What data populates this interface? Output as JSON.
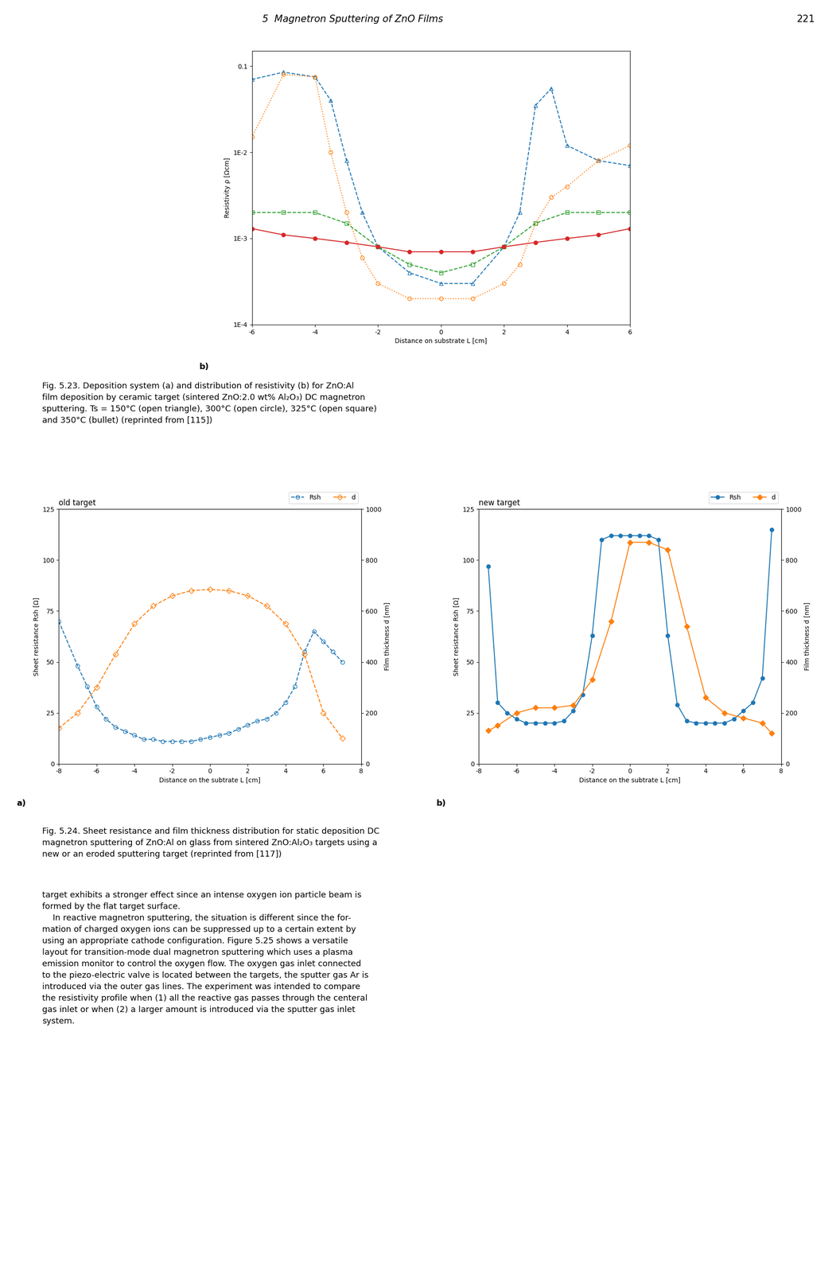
{
  "annotations": [
    "5  Magnetron Sputtering of ZnO Films",
    "221",
    "Fig. 5.23. Deposition system (a) and distribution of resistivity (b) for ZnO:Al\nfilm deposition by ceramic target (sintered ZnO:2.0 wt% Al₂O₃) DC magnetron\nsputtering. Ts = 150°C (open triangle), 300°C (open circle), 325°C (open square)\nand 350°C (bullet) (reprinted from [115])",
    "Fig. 5.24. Sheet resistance and film thickness distribution for static deposition DC\nmagnetron sputtering of ZnO:Al on glass from sintered ZnO:Al₂O₃ targets using a\nnew or an eroded sputtering target (reprinted from [117])",
    "target exhibits a stronger effect since an intense oxygen ion particle beam is\nformed by the flat target surface.\n    In reactive magnetron sputtering, the situation is different since the for-\nmation of charged oxygen ions can be suppressed up to a certain extent by\nusing an appropriate cathode configuration. Figure 5.25 shows a versatile\nlayout for transition-mode dual magnetron sputtering which uses a plasma\nemission monitor to control the oxygen flow. The oxygen gas inlet connected\nto the piezo-electric valve is located between the targets, the sputter gas Ar is\nintroduced via the outer gas lines. The experiment was intended to compare\nthe resistivity profile when (1) all the reactive gas passes through the centeral\ngas inlet or when (2) a larger amount is introduced via the sputter gas inlet\nsystem."
  ],
  "chart_data": [
    {
      "type": "line",
      "log": "y",
      "x_label": "Distance on substrate L [cm]",
      "y_label": "Resistivity ρ [Ωcm]",
      "xlim": [
        -6,
        6
      ],
      "xticks": [
        -6,
        -4,
        -2,
        0,
        2,
        4,
        6
      ],
      "ylim": [
        0.0001,
        0.15
      ],
      "yticks": [
        {
          "value": 0.0001,
          "label": "1E-4"
        },
        {
          "value": 0.001,
          "label": "1E-3"
        },
        {
          "value": 0.01,
          "label": "1E-2"
        },
        0.1
      ],
      "annotations": [
        "b)"
      ],
      "series": [
        {
          "marker": "open triangle",
          "line_style": "dashed",
          "x": [
            -6,
            -5,
            -4,
            -3.5,
            -3,
            -2.5,
            -2,
            -1,
            0,
            1,
            2,
            2.5,
            3,
            3.5,
            4,
            5,
            6
          ],
          "values": [
            0.07,
            0.085,
            0.075,
            0.04,
            0.008,
            0.002,
            0.0008,
            0.0004,
            0.0003,
            0.0003,
            0.0008,
            0.002,
            0.035,
            0.055,
            0.012,
            0.008,
            0.007
          ]
        },
        {
          "marker": "open circle",
          "line_style": "dotted",
          "x": [
            -6,
            -5,
            -4,
            -3.5,
            -3,
            -2.5,
            -2,
            -1,
            0,
            1,
            2,
            2.5,
            3,
            3.5,
            4,
            5,
            6
          ],
          "values": [
            0.015,
            0.08,
            0.075,
            0.01,
            0.002,
            0.0006,
            0.0003,
            0.0002,
            0.0002,
            0.0002,
            0.0003,
            0.0005,
            0.0015,
            0.003,
            0.004,
            0.008,
            0.012
          ]
        },
        {
          "marker": "open square",
          "line_style": "dashed",
          "x": [
            -6,
            -5,
            -4,
            -3,
            -2,
            -1,
            0,
            1,
            2,
            3,
            4,
            5,
            6
          ],
          "values": [
            0.002,
            0.002,
            0.002,
            0.0015,
            0.0008,
            0.0005,
            0.0004,
            0.0005,
            0.0008,
            0.0015,
            0.002,
            0.002,
            0.002
          ]
        },
        {
          "marker": "bullet",
          "line_style": "solid",
          "x": [
            -6,
            -5,
            -4,
            -3,
            -2,
            -1,
            0,
            1,
            2,
            3,
            4,
            5,
            6
          ],
          "values": [
            0.0013,
            0.0011,
            0.001,
            0.0009,
            0.0008,
            0.0007,
            0.0007,
            0.0007,
            0.0008,
            0.0009,
            0.001,
            0.0011,
            0.0013
          ]
        }
      ]
    },
    {
      "type": "line",
      "title": "old target",
      "x_label": "Distance on the subtrate L [cm]",
      "y_label": "Sheet resistance Rsh [Ω]",
      "y2_label": "Film thickness d [nm]",
      "xlim": [
        -8,
        8
      ],
      "xticks": [
        -8,
        -6,
        -4,
        -2,
        0,
        2,
        4,
        6,
        8
      ],
      "ylim": [
        0,
        125
      ],
      "yticks": [
        0,
        25,
        50,
        75,
        100,
        125
      ],
      "y2lim": [
        0,
        1000
      ],
      "y2ticks": [
        0,
        200,
        400,
        600,
        800,
        1000
      ],
      "legend": "upper right",
      "annotations": [
        "a)"
      ],
      "series": [
        {
          "name": "Rsh",
          "axis": "y",
          "marker": "open circle",
          "line_style": "dashed",
          "x": [
            -8,
            -7,
            -6.5,
            -6,
            -5.5,
            -5,
            -4.5,
            -4,
            -3.5,
            -3,
            -2.5,
            -2,
            -1.5,
            -1,
            -0.5,
            0,
            0.5,
            1,
            1.5,
            2,
            2.5,
            3,
            3.5,
            4,
            4.5,
            5,
            5.5,
            6,
            6.5,
            7
          ],
          "values": [
            70,
            48,
            38,
            28,
            22,
            18,
            16,
            14,
            12,
            12,
            11,
            11,
            11,
            11,
            12,
            13,
            14,
            15,
            17,
            19,
            21,
            22,
            25,
            30,
            38,
            55,
            65,
            60,
            55,
            50
          ]
        },
        {
          "name": "d",
          "axis": "y2",
          "marker": "open diamond",
          "line_style": "dashed",
          "x": [
            -8,
            -7,
            -6,
            -5,
            -4,
            -3,
            -2,
            -1,
            0,
            1,
            2,
            3,
            4,
            5,
            6,
            7
          ],
          "values": [
            140,
            200,
            300,
            430,
            550,
            620,
            660,
            680,
            685,
            680,
            660,
            620,
            550,
            430,
            200,
            100
          ]
        }
      ]
    },
    {
      "type": "line",
      "title": "new target",
      "x_label": "Distance on the subtrate L [cm]",
      "y_label": "Sheet resistance Rsh [Ω]",
      "y2_label": "Film thickness d [nm]",
      "xlim": [
        -8,
        8
      ],
      "xticks": [
        -8,
        -6,
        -4,
        -2,
        0,
        2,
        4,
        6,
        8
      ],
      "ylim": [
        0,
        125
      ],
      "yticks": [
        0,
        25,
        50,
        75,
        100,
        125
      ],
      "y2lim": [
        0,
        1000
      ],
      "y2ticks": [
        0,
        200,
        400,
        600,
        800,
        1000
      ],
      "legend": "upper right",
      "annotations": [
        "b)"
      ],
      "series": [
        {
          "name": "Rsh",
          "axis": "y",
          "marker": "filled circle",
          "line_style": "solid",
          "x": [
            -7.5,
            -7,
            -6.5,
            -6,
            -5.5,
            -5,
            -4.5,
            -4,
            -3.5,
            -3,
            -2.5,
            -2,
            -1.5,
            -1,
            -0.5,
            0,
            0.5,
            1,
            1.5,
            2,
            2.5,
            3,
            3.5,
            4,
            4.5,
            5,
            5.5,
            6,
            6.5,
            7,
            7.5
          ],
          "values": [
            97,
            30,
            25,
            22,
            20,
            20,
            20,
            20,
            21,
            26,
            34,
            63,
            110,
            112,
            112,
            112,
            112,
            112,
            110,
            63,
            29,
            21,
            20,
            20,
            20,
            20,
            22,
            26,
            30,
            42,
            115
          ]
        },
        {
          "name": "d",
          "axis": "y2",
          "marker": "filled diamond",
          "line_style": "solid",
          "x": [
            -7.5,
            -7,
            -6,
            -5,
            -4,
            -3,
            -2,
            -1,
            0,
            1,
            2,
            3,
            4,
            5,
            6,
            7,
            7.5
          ],
          "values": [
            130,
            150,
            200,
            220,
            220,
            230,
            330,
            560,
            870,
            870,
            840,
            540,
            260,
            200,
            180,
            160,
            120
          ]
        }
      ]
    }
  ]
}
